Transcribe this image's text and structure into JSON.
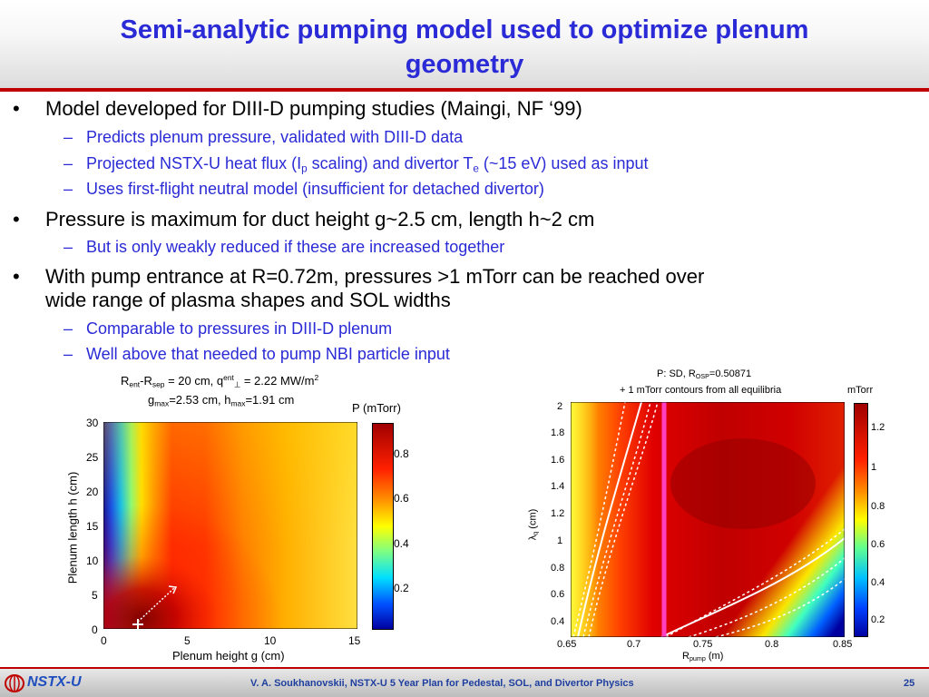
{
  "title": {
    "line1": "Semi-analytic pumping model used to optimize plenum",
    "line2": "geometry"
  },
  "bullets": {
    "b1": "Model developed for DIII-D pumping studies (Maingi, NF ‘99)",
    "b1_s1": "Predicts plenum pressure, validated with DIII-D data",
    "b1_s2": {
      "a": "Projected NSTX-U heat flux (I",
      "sub1": "p",
      "b": " scaling) and divertor T",
      "sub2": "e",
      "c": " (~15 eV) used as input"
    },
    "b1_s3": "Uses first-flight neutral model (insufficient for detached divertor)",
    "b2": "Pressure is maximum for duct height g~2.5 cm, length h~2 cm",
    "b2_s1": "But is only weakly reduced if these are increased together",
    "b3_l1": "With pump entrance at R=0.72m, pressures >1 mTorr can be reached over",
    "b3_l2": "wide range of plasma shapes and SOL widths",
    "b3_s1": "Comparable to pressures in DIII-D plenum",
    "b3_s2": "Well above that needed to pump NBI particle input"
  },
  "left_plot": {
    "info1": {
      "a": "R",
      "s1": "ent",
      "b": "-R",
      "s2": "sep",
      "c": " = 20 cm, q",
      "sup": "ent",
      "s3": "⊥",
      "d": " = 2.22 MW/m",
      "sup2": "2"
    },
    "info2": {
      "a": "g",
      "s1": "max",
      "b": "=2.53 cm, h",
      "s2": "max",
      "c": "=1.91 cm"
    },
    "cbar_label": "P (mTorr)",
    "cbar_ticks": [
      "0.8",
      "0.6",
      "0.4",
      "0.2"
    ],
    "xlabel": "Plenum height g (cm)",
    "ylabel": "Plenum length h (cm)",
    "xticks": [
      "0",
      "5",
      "10",
      "15"
    ],
    "yticks": [
      "30",
      "25",
      "20",
      "15",
      "10",
      "5",
      "0"
    ]
  },
  "right_plot": {
    "title1": {
      "a": "P: SD, R",
      "s": "OSP",
      "b": "=0.50871"
    },
    "title2": "+ 1 mTorr contours from all equilibria",
    "cbar_label": "mTorr",
    "cbar_ticks": [
      "1.2",
      "1",
      "0.8",
      "0.6",
      "0.4",
      "0.2"
    ],
    "xlabel": {
      "a": "R",
      "s": "pump",
      "b": " (m)"
    },
    "ylabel": {
      "a": "λ",
      "s": "q",
      "b": " (cm)"
    },
    "xticks": [
      "0.65",
      "0.7",
      "0.75",
      "0.8",
      "0.85"
    ],
    "yticks": [
      "2",
      "1.8",
      "1.6",
      "1.4",
      "1.2",
      "1",
      "0.8",
      "0.6",
      "0.4"
    ]
  },
  "footer": {
    "logo": "NSTX-U",
    "text": "V. A. Soukhanovskii, NSTX-U 5 Year Plan for Pedestal, SOL, and Divertor Physics",
    "page": "25"
  },
  "colors": {
    "title": "#2a2ad6",
    "rule": "#c00000",
    "sub_bullet": "#2a2ad6",
    "logo": "#1f4fbf"
  }
}
